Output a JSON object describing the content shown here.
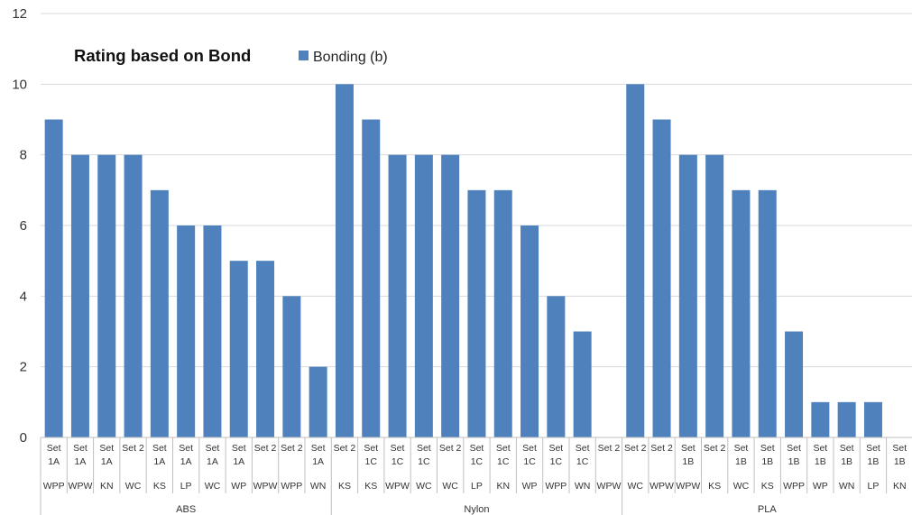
{
  "chart_data": {
    "type": "bar",
    "title": "Rating based on Bond",
    "xlabel": "",
    "ylabel": "",
    "ylim": [
      0,
      12
    ],
    "yticks": [
      0,
      2,
      4,
      6,
      8,
      10,
      12
    ],
    "grid": true,
    "legend_position": "top",
    "colors": {
      "bar": "#4F81BD",
      "grid": "#D9D9D9",
      "axis": "#BFBFBF"
    },
    "groups": [
      "ABS",
      "Nylon",
      "PLA"
    ],
    "categories": [
      {
        "group": "ABS",
        "set": [
          "Set",
          "1A"
        ],
        "code": "WPP"
      },
      {
        "group": "ABS",
        "set": [
          "Set",
          "1A"
        ],
        "code": "WPW"
      },
      {
        "group": "ABS",
        "set": [
          "Set",
          "1A"
        ],
        "code": "KN"
      },
      {
        "group": "ABS",
        "set": [
          "Set 2"
        ],
        "code": "WC"
      },
      {
        "group": "ABS",
        "set": [
          "Set",
          "1A"
        ],
        "code": "KS"
      },
      {
        "group": "ABS",
        "set": [
          "Set",
          "1A"
        ],
        "code": "LP"
      },
      {
        "group": "ABS",
        "set": [
          "Set",
          "1A"
        ],
        "code": "WC"
      },
      {
        "group": "ABS",
        "set": [
          "Set",
          "1A"
        ],
        "code": "WP"
      },
      {
        "group": "ABS",
        "set": [
          "Set 2"
        ],
        "code": "WPW"
      },
      {
        "group": "ABS",
        "set": [
          "Set 2"
        ],
        "code": "WPP"
      },
      {
        "group": "ABS",
        "set": [
          "Set",
          "1A"
        ],
        "code": "WN"
      },
      {
        "group": "Nylon",
        "set": [
          "Set 2"
        ],
        "code": "KS"
      },
      {
        "group": "Nylon",
        "set": [
          "Set",
          "1C"
        ],
        "code": "KS"
      },
      {
        "group": "Nylon",
        "set": [
          "Set",
          "1C"
        ],
        "code": "WPW"
      },
      {
        "group": "Nylon",
        "set": [
          "Set",
          "1C"
        ],
        "code": "WC"
      },
      {
        "group": "Nylon",
        "set": [
          "Set 2"
        ],
        "code": "WC"
      },
      {
        "group": "Nylon",
        "set": [
          "Set",
          "1C"
        ],
        "code": "LP"
      },
      {
        "group": "Nylon",
        "set": [
          "Set",
          "1C"
        ],
        "code": "KN"
      },
      {
        "group": "Nylon",
        "set": [
          "Set",
          "1C"
        ],
        "code": "WP"
      },
      {
        "group": "Nylon",
        "set": [
          "Set",
          "1C"
        ],
        "code": "WPP"
      },
      {
        "group": "Nylon",
        "set": [
          "Set",
          "1C"
        ],
        "code": "WN"
      },
      {
        "group": "Nylon",
        "set": [
          "Set 2"
        ],
        "code": "WPW"
      },
      {
        "group": "PLA",
        "set": [
          "Set 2"
        ],
        "code": "WC"
      },
      {
        "group": "PLA",
        "set": [
          "Set 2"
        ],
        "code": "WPW"
      },
      {
        "group": "PLA",
        "set": [
          "Set",
          "1B"
        ],
        "code": "WPW"
      },
      {
        "group": "PLA",
        "set": [
          "Set 2"
        ],
        "code": "KS"
      },
      {
        "group": "PLA",
        "set": [
          "Set",
          "1B"
        ],
        "code": "WC"
      },
      {
        "group": "PLA",
        "set": [
          "Set",
          "1B"
        ],
        "code": "KS"
      },
      {
        "group": "PLA",
        "set": [
          "Set",
          "1B"
        ],
        "code": "WPP"
      },
      {
        "group": "PLA",
        "set": [
          "Set",
          "1B"
        ],
        "code": "WP"
      },
      {
        "group": "PLA",
        "set": [
          "Set",
          "1B"
        ],
        "code": "WN"
      },
      {
        "group": "PLA",
        "set": [
          "Set",
          "1B"
        ],
        "code": "LP"
      },
      {
        "group": "PLA",
        "set": [
          "Set",
          "1B"
        ],
        "code": "KN"
      }
    ],
    "series": [
      {
        "name": "Bonding (b)",
        "values": [
          9,
          8,
          8,
          8,
          7,
          6,
          6,
          5,
          5,
          4,
          2,
          10,
          9,
          8,
          8,
          8,
          7,
          7,
          6,
          4,
          3,
          0,
          10,
          9,
          8,
          8,
          7,
          7,
          3,
          1,
          1,
          1,
          0
        ]
      }
    ]
  }
}
